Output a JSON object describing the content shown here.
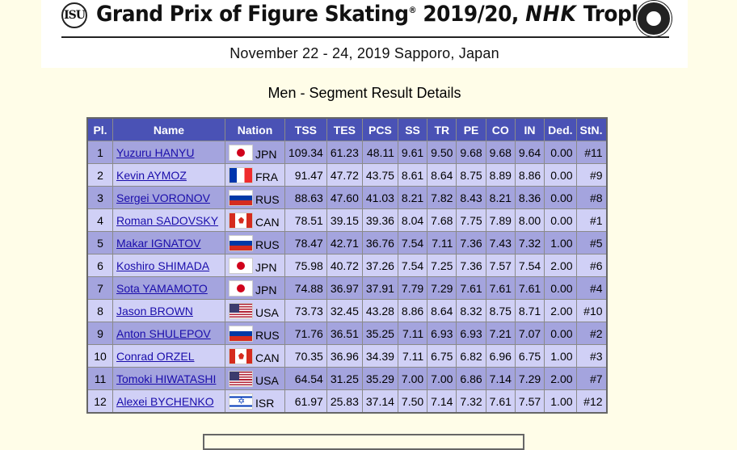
{
  "banner": {
    "logo_text": "ISU",
    "title_main": "Grand Prix of Figure Skating",
    "title_mark": "®",
    "title_season": " 2019/20, ",
    "title_brand": "NHK",
    "title_event": " Trophy",
    "dates_location": "November 22 - 24, 2019  Sapporo, Japan"
  },
  "page_heading": "Men - Segment Result Details",
  "table": {
    "headers": [
      "Pl.",
      "Name",
      "Nation",
      "TSS",
      "TES",
      "PCS",
      "SS",
      "TR",
      "PE",
      "CO",
      "IN",
      "Ded.",
      "StN."
    ],
    "rows": [
      {
        "pl": "1",
        "name": "Yuzuru HANYU",
        "flag": "jpn",
        "noc": "JPN",
        "tss": "109.34",
        "tes": "61.23",
        "pcs": "48.11",
        "ss": "9.61",
        "tr": "9.50",
        "pe": "9.68",
        "co": "9.68",
        "in": "9.64",
        "ded": "0.00",
        "stn": "#11"
      },
      {
        "pl": "2",
        "name": "Kevin AYMOZ",
        "flag": "fra",
        "noc": "FRA",
        "tss": "91.47",
        "tes": "47.72",
        "pcs": "43.75",
        "ss": "8.61",
        "tr": "8.64",
        "pe": "8.75",
        "co": "8.89",
        "in": "8.86",
        "ded": "0.00",
        "stn": "#9"
      },
      {
        "pl": "3",
        "name": "Sergei VORONOV",
        "flag": "rus",
        "noc": "RUS",
        "tss": "88.63",
        "tes": "47.60",
        "pcs": "41.03",
        "ss": "8.21",
        "tr": "7.82",
        "pe": "8.43",
        "co": "8.21",
        "in": "8.36",
        "ded": "0.00",
        "stn": "#8"
      },
      {
        "pl": "4",
        "name": "Roman SADOVSKY",
        "flag": "can",
        "noc": "CAN",
        "tss": "78.51",
        "tes": "39.15",
        "pcs": "39.36",
        "ss": "8.04",
        "tr": "7.68",
        "pe": "7.75",
        "co": "7.89",
        "in": "8.00",
        "ded": "0.00",
        "stn": "#1"
      },
      {
        "pl": "5",
        "name": "Makar IGNATOV",
        "flag": "rus",
        "noc": "RUS",
        "tss": "78.47",
        "tes": "42.71",
        "pcs": "36.76",
        "ss": "7.54",
        "tr": "7.11",
        "pe": "7.36",
        "co": "7.43",
        "in": "7.32",
        "ded": "1.00",
        "stn": "#5"
      },
      {
        "pl": "6",
        "name": "Koshiro SHIMADA",
        "flag": "jpn",
        "noc": "JPN",
        "tss": "75.98",
        "tes": "40.72",
        "pcs": "37.26",
        "ss": "7.54",
        "tr": "7.25",
        "pe": "7.36",
        "co": "7.57",
        "in": "7.54",
        "ded": "2.00",
        "stn": "#6"
      },
      {
        "pl": "7",
        "name": "Sota YAMAMOTO",
        "flag": "jpn",
        "noc": "JPN",
        "tss": "74.88",
        "tes": "36.97",
        "pcs": "37.91",
        "ss": "7.79",
        "tr": "7.29",
        "pe": "7.61",
        "co": "7.61",
        "in": "7.61",
        "ded": "0.00",
        "stn": "#4"
      },
      {
        "pl": "8",
        "name": "Jason BROWN",
        "flag": "usa",
        "noc": "USA",
        "tss": "73.73",
        "tes": "32.45",
        "pcs": "43.28",
        "ss": "8.86",
        "tr": "8.64",
        "pe": "8.32",
        "co": "8.75",
        "in": "8.71",
        "ded": "2.00",
        "stn": "#10"
      },
      {
        "pl": "9",
        "name": "Anton SHULEPOV",
        "flag": "rus",
        "noc": "RUS",
        "tss": "71.76",
        "tes": "36.51",
        "pcs": "35.25",
        "ss": "7.11",
        "tr": "6.93",
        "pe": "6.93",
        "co": "7.21",
        "in": "7.07",
        "ded": "0.00",
        "stn": "#2"
      },
      {
        "pl": "10",
        "name": "Conrad ORZEL",
        "flag": "can",
        "noc": "CAN",
        "tss": "70.35",
        "tes": "36.96",
        "pcs": "34.39",
        "ss": "7.11",
        "tr": "6.75",
        "pe": "6.82",
        "co": "6.96",
        "in": "6.75",
        "ded": "1.00",
        "stn": "#3"
      },
      {
        "pl": "11",
        "name": "Tomoki HIWATASHI",
        "flag": "usa",
        "noc": "USA",
        "tss": "64.54",
        "tes": "31.25",
        "pcs": "35.29",
        "ss": "7.00",
        "tr": "7.00",
        "pe": "6.86",
        "co": "7.14",
        "in": "7.29",
        "ded": "2.00",
        "stn": "#7"
      },
      {
        "pl": "12",
        "name": "Alexei BYCHENKO",
        "flag": "isr",
        "noc": "ISR",
        "tss": "61.97",
        "tes": "25.83",
        "pcs": "37.14",
        "ss": "7.50",
        "tr": "7.14",
        "pe": "7.32",
        "co": "7.61",
        "in": "7.57",
        "ded": "1.00",
        "stn": "#12"
      }
    ]
  }
}
